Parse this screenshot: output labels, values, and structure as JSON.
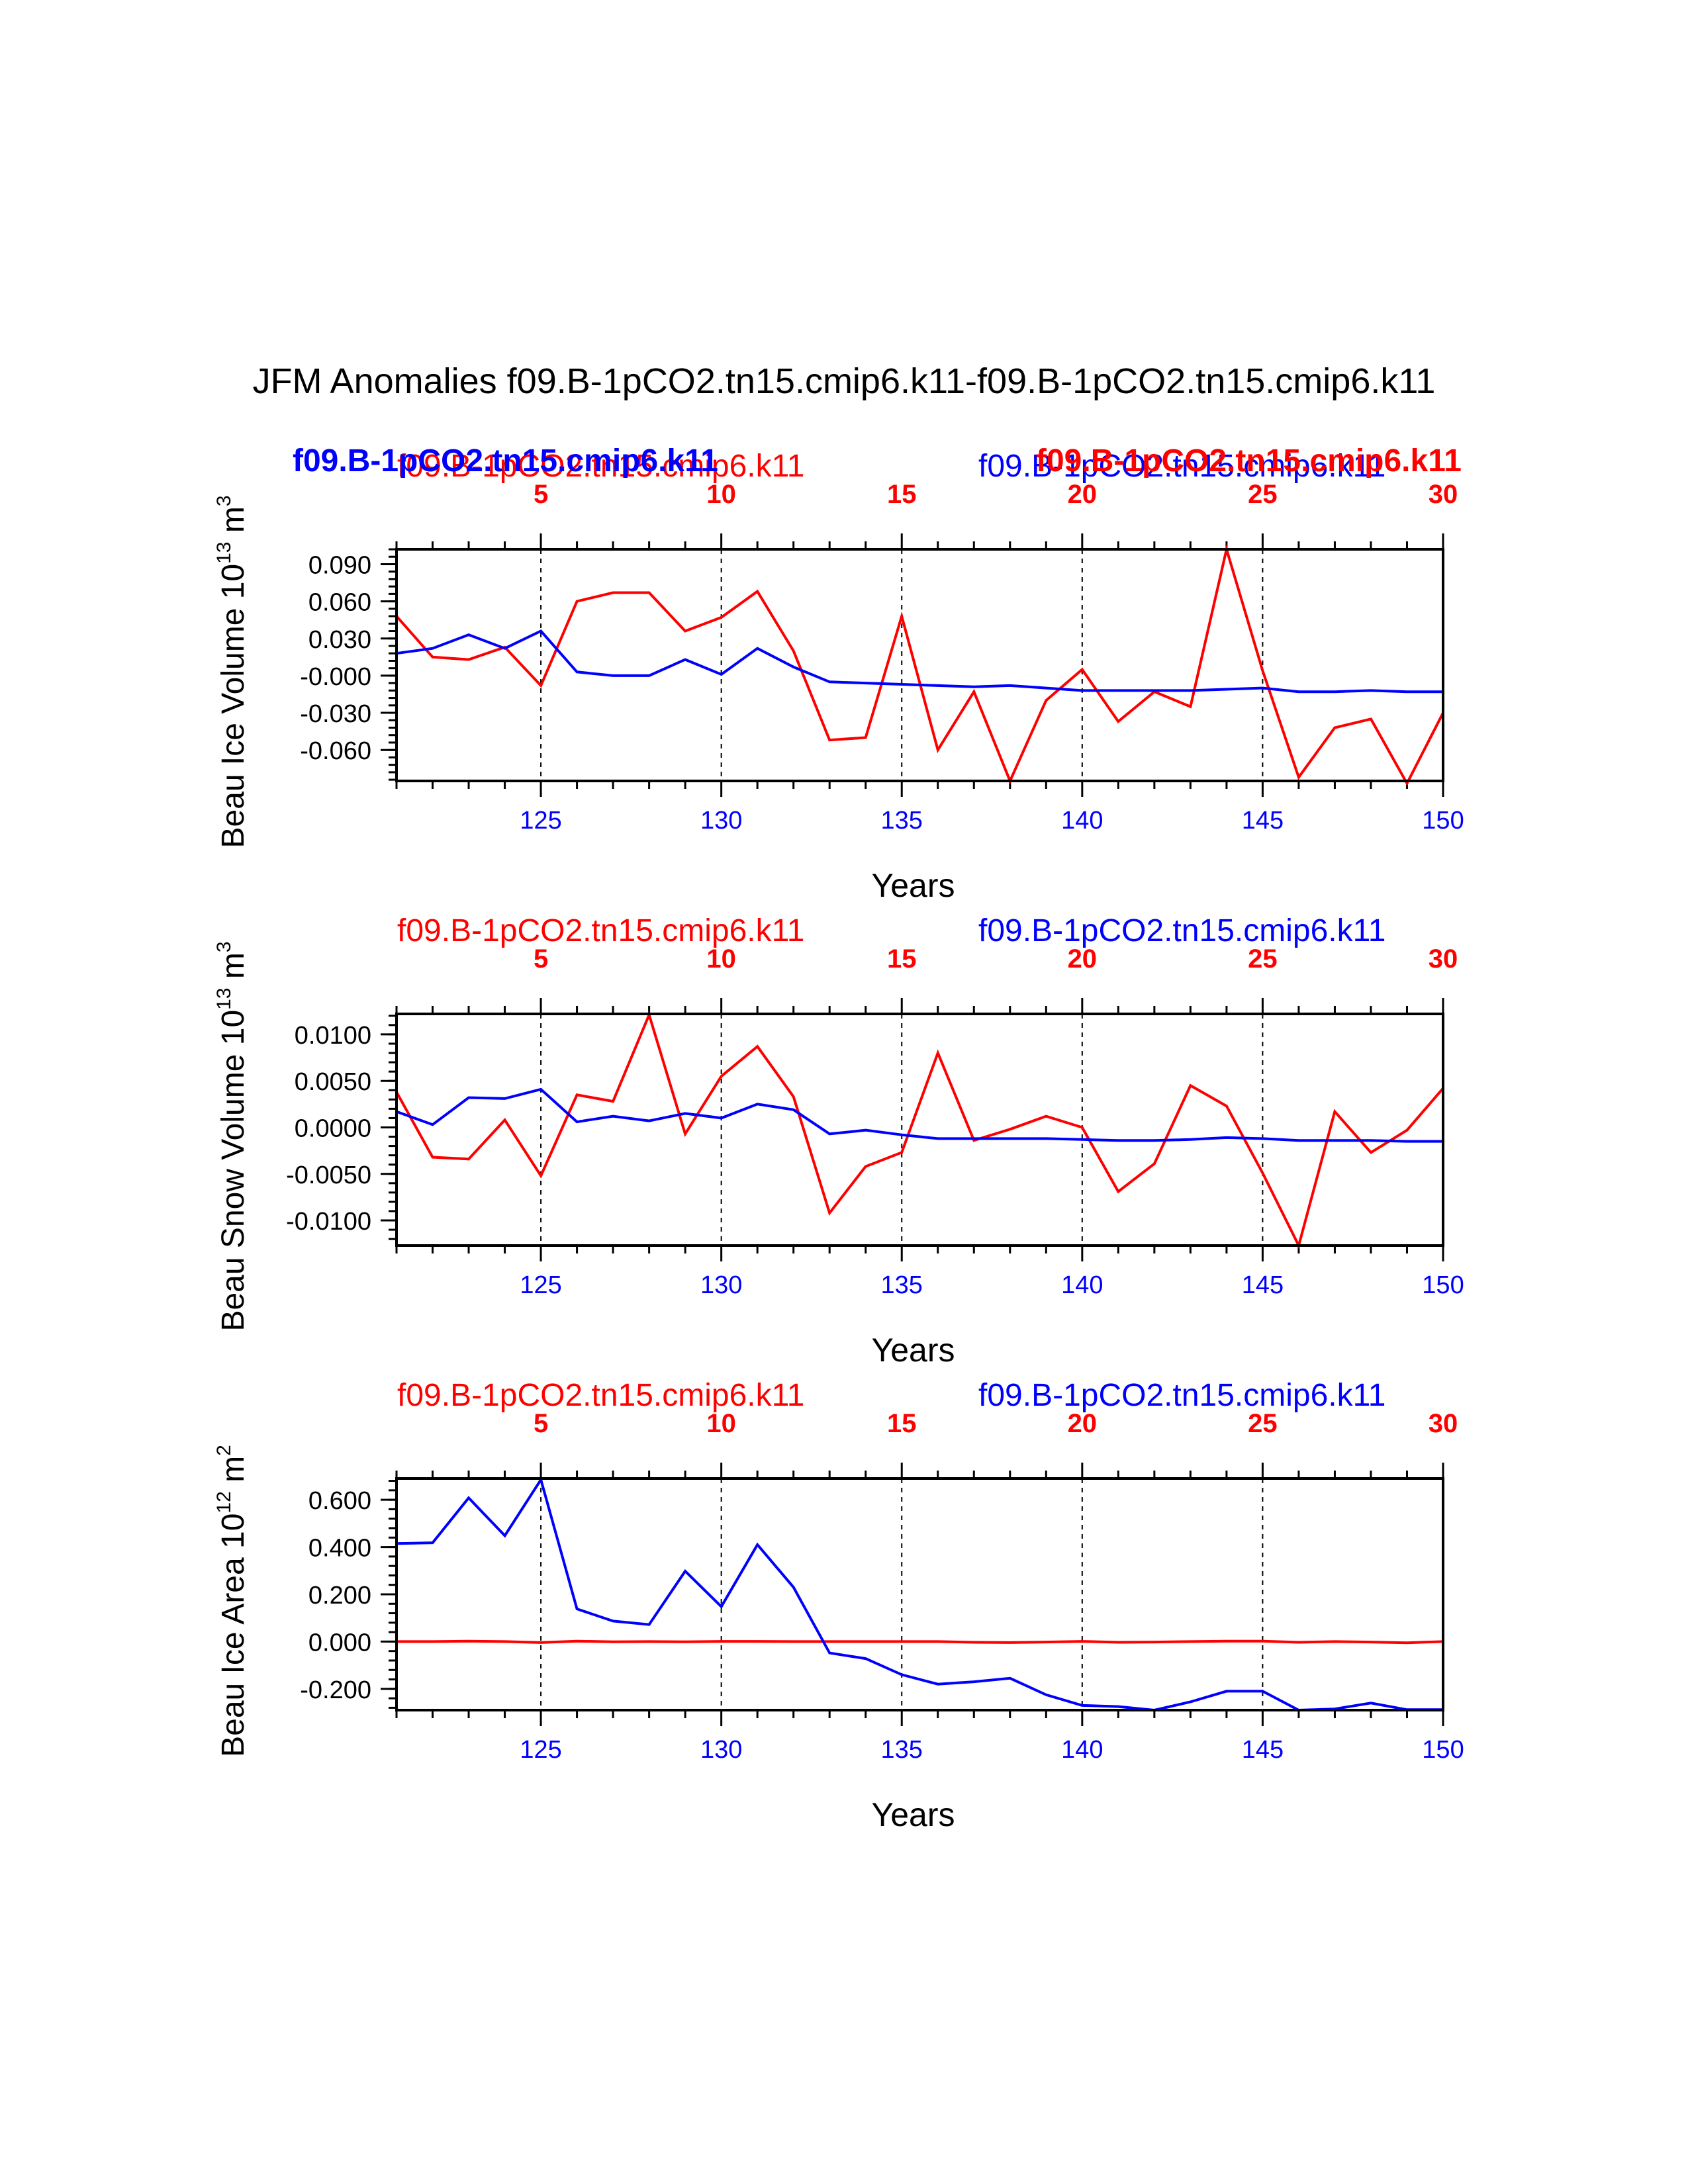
{
  "title": "JFM Anomalies f09.B-1pCO2.tn15.cmip6.k11-f09.B-1pCO2.tn15.cmip6.k11",
  "colors": {
    "case1": "#ff0000",
    "case2": "#0000ff",
    "axis": "#000000"
  },
  "overlay_labels": {
    "blue": "f09.B-1pCO2.tn15.cmip6.k11",
    "red": "f09.B-1pCO2.tn15.cmip6.k11"
  },
  "chart_data": [
    {
      "type": "line",
      "ylabel": "Beau Ice Volume 10",
      "ylabel_sup": "13",
      "ylabel_unit": " m",
      "ylabel_unit_sup": "3",
      "xlabel": "Years",
      "top_left_label": "f09.B-1pCO2.tn15.cmip6.k11",
      "top_right_label": "f09.B-1pCO2.tn15.cmip6.k11",
      "xlim": [
        121,
        150
      ],
      "ylim": [
        -0.085,
        0.102
      ],
      "x_bottom_ticks": [
        "125",
        "130",
        "135",
        "140",
        "145",
        "150"
      ],
      "x_top_ticks": [
        "5",
        "10",
        "15",
        "20",
        "25",
        "30"
      ],
      "y_ticks": [
        {
          "v": 0.09,
          "label": "0.090"
        },
        {
          "v": 0.06,
          "label": "0.060"
        },
        {
          "v": 0.03,
          "label": "0.030"
        },
        {
          "v": 0.0,
          "label": "-0.000"
        },
        {
          "v": -0.03,
          "label": "-0.030"
        },
        {
          "v": -0.06,
          "label": "-0.060"
        }
      ],
      "x": [
        121,
        122,
        123,
        124,
        125,
        126,
        127,
        128,
        129,
        130,
        131,
        132,
        133,
        134,
        135,
        136,
        137,
        138,
        139,
        140,
        141,
        142,
        143,
        144,
        145,
        146,
        147,
        148,
        149,
        150
      ],
      "series": [
        {
          "color": "#ff0000",
          "values": [
            0.048,
            0.015,
            0.013,
            0.023,
            -0.008,
            0.06,
            0.067,
            0.067,
            0.036,
            0.047,
            0.068,
            0.02,
            -0.052,
            -0.05,
            0.048,
            -0.06,
            -0.013,
            -0.085,
            -0.02,
            0.005,
            -0.037,
            -0.013,
            -0.025,
            0.102,
            0.004,
            -0.082,
            -0.042,
            -0.035,
            -0.087,
            -0.03
          ]
        },
        {
          "color": "#0000ff",
          "values": [
            0.018,
            0.022,
            0.033,
            0.022,
            0.036,
            0.003,
            0.0,
            0.0,
            0.013,
            0.001,
            0.022,
            0.007,
            -0.005,
            -0.006,
            -0.007,
            -0.008,
            -0.009,
            -0.008,
            -0.01,
            -0.012,
            -0.012,
            -0.012,
            -0.012,
            -0.011,
            -0.01,
            -0.013,
            -0.013,
            -0.012,
            -0.013,
            -0.013
          ]
        }
      ]
    },
    {
      "type": "line",
      "ylabel": "Beau Snow Volume 10",
      "ylabel_sup": "13",
      "ylabel_unit": " m",
      "ylabel_unit_sup": "3",
      "xlabel": "Years",
      "top_left_label": "f09.B-1pCO2.tn15.cmip6.k11",
      "top_right_label": "f09.B-1pCO2.tn15.cmip6.k11",
      "xlim": [
        121,
        150
      ],
      "ylim": [
        -0.0127,
        0.0122
      ],
      "x_bottom_ticks": [
        "125",
        "130",
        "135",
        "140",
        "145",
        "150"
      ],
      "x_top_ticks": [
        "5",
        "10",
        "15",
        "20",
        "25",
        "30"
      ],
      "y_ticks": [
        {
          "v": 0.01,
          "label": "0.0100"
        },
        {
          "v": 0.005,
          "label": "0.0050"
        },
        {
          "v": 0.0,
          "label": "0.0000"
        },
        {
          "v": -0.005,
          "label": "-0.0050"
        },
        {
          "v": -0.01,
          "label": "-0.0100"
        }
      ],
      "x": [
        121,
        122,
        123,
        124,
        125,
        126,
        127,
        128,
        129,
        130,
        131,
        132,
        133,
        134,
        135,
        136,
        137,
        138,
        139,
        140,
        141,
        142,
        143,
        144,
        145,
        146,
        147,
        148,
        149,
        150
      ],
      "series": [
        {
          "color": "#ff0000",
          "values": [
            0.0038,
            -0.0032,
            -0.0034,
            0.0008,
            -0.0052,
            0.0035,
            0.0028,
            0.0121,
            -0.0007,
            0.0055,
            0.0087,
            0.0033,
            -0.0092,
            -0.0042,
            -0.0027,
            0.008,
            -0.0014,
            -0.0002,
            0.0012,
            0.0,
            -0.0069,
            -0.0039,
            0.0045,
            0.0023,
            -0.0049,
            -0.0127,
            0.0017,
            -0.0027,
            -0.0003,
            0.0042
          ]
        },
        {
          "color": "#0000ff",
          "values": [
            0.0017,
            0.0003,
            0.0032,
            0.0031,
            0.0041,
            0.0006,
            0.0012,
            0.0007,
            0.0015,
            0.001,
            0.0025,
            0.0019,
            -0.0007,
            -0.0003,
            -0.0008,
            -0.0012,
            -0.0012,
            -0.0012,
            -0.0012,
            -0.0013,
            -0.0014,
            -0.0014,
            -0.0013,
            -0.0011,
            -0.0012,
            -0.0014,
            -0.0014,
            -0.0014,
            -0.0015,
            -0.0015
          ]
        }
      ]
    },
    {
      "type": "line",
      "ylabel": "Beau Ice Area 10",
      "ylabel_sup": "12",
      "ylabel_unit": " m",
      "ylabel_unit_sup": "2",
      "xlabel": "Years",
      "top_left_label": "f09.B-1pCO2.tn15.cmip6.k11",
      "top_right_label": "f09.B-1pCO2.tn15.cmip6.k11",
      "xlim": [
        121,
        150
      ],
      "ylim": [
        -0.29,
        0.69
      ],
      "x_bottom_ticks": [
        "125",
        "130",
        "135",
        "140",
        "145",
        "150"
      ],
      "x_top_ticks": [
        "5",
        "10",
        "15",
        "20",
        "25",
        "30"
      ],
      "y_ticks": [
        {
          "v": 0.6,
          "label": "0.600"
        },
        {
          "v": 0.4,
          "label": "0.400"
        },
        {
          "v": 0.2,
          "label": "0.200"
        },
        {
          "v": 0.0,
          "label": "0.000"
        },
        {
          "v": -0.2,
          "label": "-0.200"
        }
      ],
      "x": [
        121,
        122,
        123,
        124,
        125,
        126,
        127,
        128,
        129,
        130,
        131,
        132,
        133,
        134,
        135,
        136,
        137,
        138,
        139,
        140,
        141,
        142,
        143,
        144,
        145,
        146,
        147,
        148,
        149,
        150
      ],
      "series": [
        {
          "color": "#ff0000",
          "values": [
            0.0,
            0.0,
            0.002,
            0.0,
            -0.004,
            0.002,
            -0.001,
            0.0,
            -0.001,
            0.001,
            0.001,
            0.0,
            0.0,
            0.0,
            0.0,
            0.0,
            -0.003,
            -0.004,
            -0.002,
            0.001,
            -0.003,
            -0.002,
            0.0,
            0.002,
            0.002,
            -0.003,
            0.0,
            -0.002,
            -0.005,
            0.0
          ]
        },
        {
          "color": "#0000ff",
          "values": [
            0.415,
            0.418,
            0.608,
            0.448,
            0.685,
            0.138,
            0.087,
            0.072,
            0.298,
            0.148,
            0.41,
            0.23,
            -0.048,
            -0.072,
            -0.14,
            -0.18,
            -0.17,
            -0.155,
            -0.225,
            -0.27,
            -0.275,
            -0.29,
            -0.255,
            -0.21,
            -0.21,
            -0.29,
            -0.285,
            -0.26,
            -0.288,
            -0.288
          ]
        }
      ]
    }
  ]
}
